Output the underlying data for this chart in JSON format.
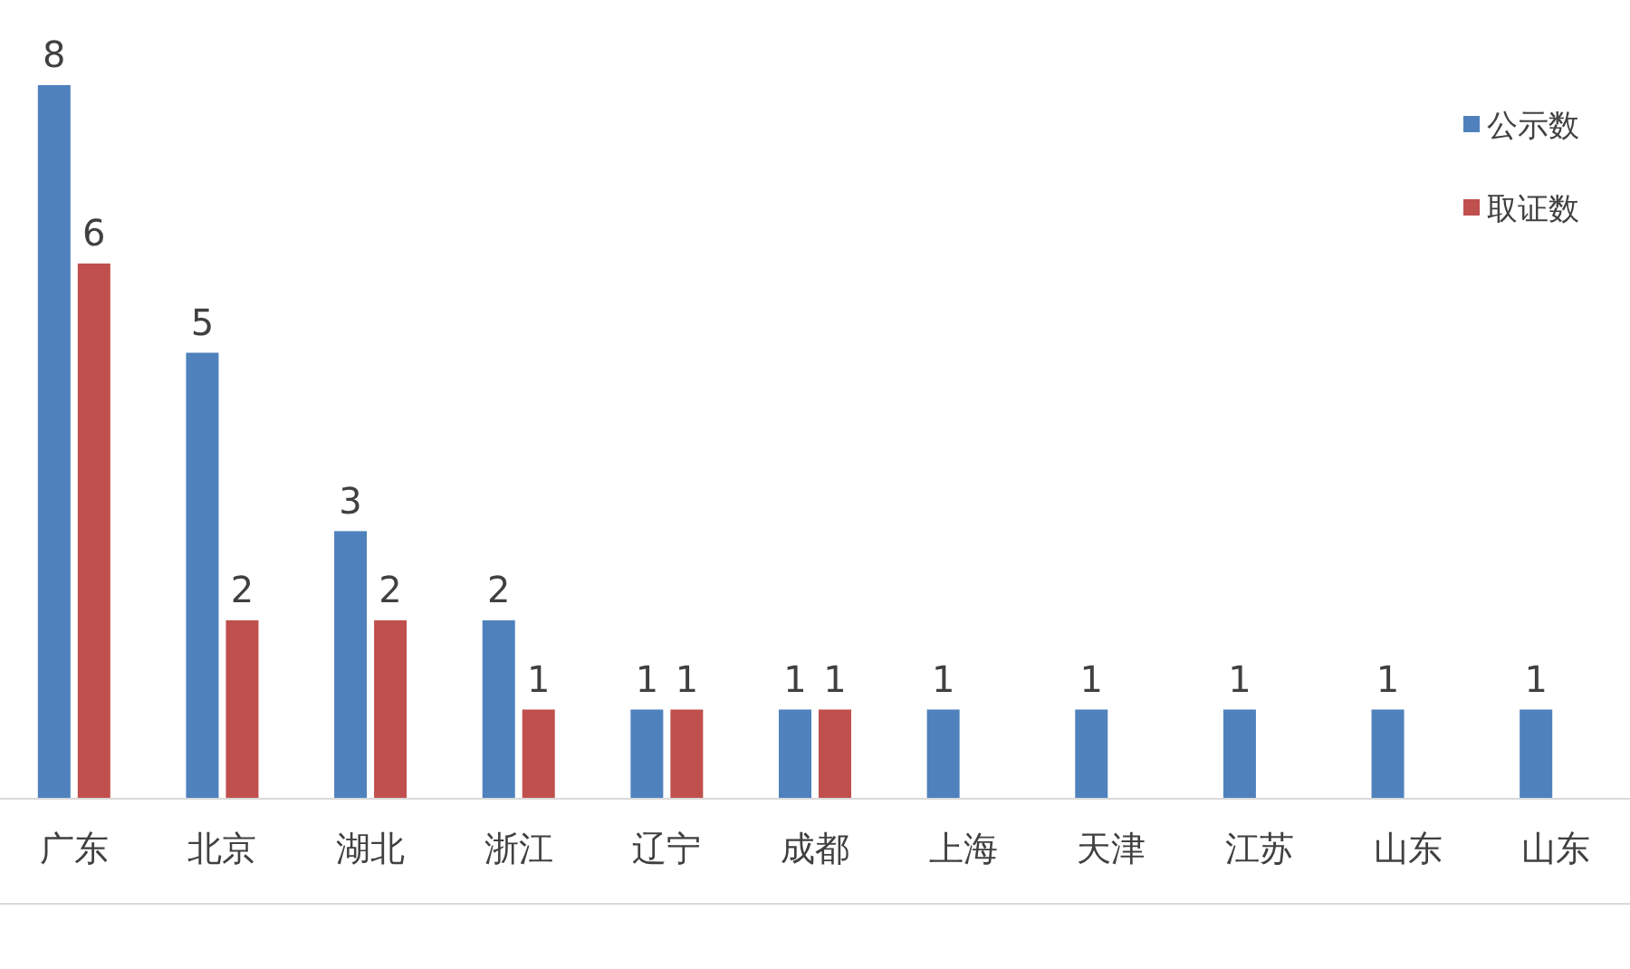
{
  "chart_data": {
    "type": "bar",
    "categories": [
      "广东",
      "北京",
      "湖北",
      "浙江",
      "辽宁",
      "成都",
      "上海",
      "天津",
      "江苏",
      "山东",
      "山东"
    ],
    "series": [
      {
        "name": "公示数",
        "color": "#4f81bd",
        "values": [
          8,
          5,
          3,
          2,
          1,
          1,
          1,
          1,
          1,
          1,
          1
        ]
      },
      {
        "name": "取证数",
        "color": "#c0504d",
        "values": [
          6,
          2,
          2,
          1,
          1,
          1,
          null,
          null,
          null,
          null,
          null
        ]
      }
    ],
    "data_labels": true,
    "legend": "top right",
    "grid": false
  }
}
